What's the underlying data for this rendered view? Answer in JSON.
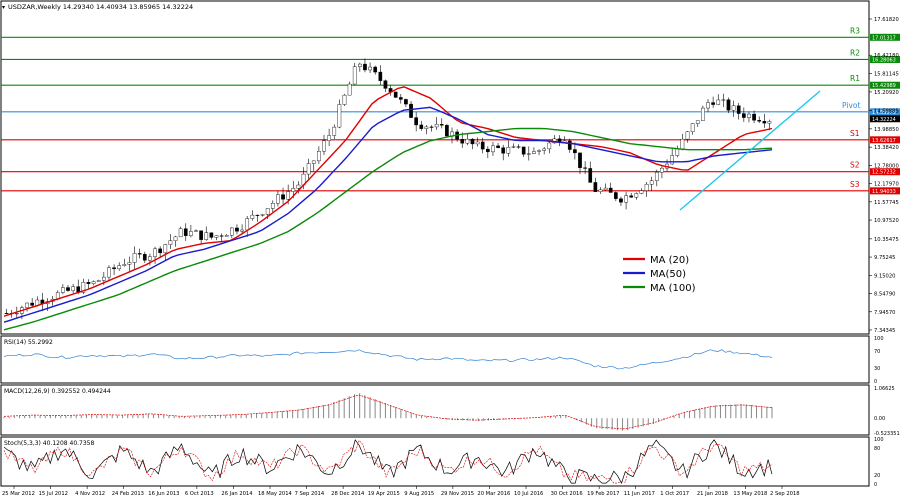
{
  "header": {
    "symbol_line": "USDZAR,Weekly  14.29340 14.40934 13.85965 14.32224"
  },
  "colors": {
    "up_candle": "#ffffff",
    "candle_stroke": "#000000",
    "ma20": "#e00000",
    "ma50": "#1a1acc",
    "ma100": "#0a8a0a",
    "resistance": "#0a8a0a",
    "pivot": "#2f8fe0",
    "support": "#e00000",
    "trend": "#1ec8f0",
    "panel_border": "#000000",
    "grid": "#dcdcdc"
  },
  "chart_data": [
    {
      "type": "line",
      "title": "USDZAR,Weekly",
      "ohlc_last": {
        "open": 14.2934,
        "high": 14.40934,
        "low": 13.85965,
        "close": 14.32224
      },
      "y_ticks": [
        "17.61820",
        "16.42180",
        "15.81145",
        "15.20920",
        "14.59885",
        "13.98850",
        "13.38420",
        "12.78000",
        "12.17970",
        "11.57745",
        "10.97520",
        "10.35475",
        "9.75245",
        "9.15020",
        "8.54790",
        "7.94570",
        "7.34345"
      ],
      "x_ticks": [
        "25 Mar 2012",
        "15 Jul 2012",
        "4 Nov 2012",
        "24 Feb 2013",
        "16 Jun 2013",
        "6 Oct 2013",
        "26 Jan 2014",
        "18 May 2014",
        "7 Sep 2014",
        "28 Dec 2014",
        "19 Apr 2015",
        "9 Aug 2015",
        "29 Nov 2015",
        "20 Mar 2016",
        "10 Jul 2016",
        "30 Oct 2016",
        "19 Feb 2017",
        "11 Jun 2017",
        "1 Oct 2017",
        "21 Jan 2018",
        "13 May 2018",
        "2 Sep 2018"
      ],
      "levels": [
        {
          "name": "R3",
          "value": 17.01317,
          "label": "17.01317"
        },
        {
          "name": "R2",
          "value": 16.28063,
          "label": "16.28063"
        },
        {
          "name": "R1",
          "value": 15.42989,
          "label": "15.42989"
        },
        {
          "name": "Pivot",
          "value": 14.55079,
          "label": "14.55079"
        },
        {
          "name": "S1",
          "value": 13.62617,
          "label": "13.62617"
        },
        {
          "name": "S2",
          "value": 12.57232,
          "label": "12.57232"
        },
        {
          "name": "S3",
          "value": 11.94033,
          "label": "11.94033"
        }
      ],
      "price_badge": "14.32224",
      "legend": [
        "MA (20)",
        "MA(50)",
        "MA (100)"
      ],
      "series": [
        {
          "name": "MA (20)",
          "values": [
            7.8,
            8.1,
            8.4,
            8.7,
            9.1,
            9.5,
            10.0,
            10.2,
            10.3,
            10.9,
            11.6,
            12.6,
            13.6,
            14.9,
            15.4,
            15.0,
            14.2,
            14.0,
            13.7,
            13.6,
            13.5,
            13.4,
            13.2,
            12.8,
            12.6,
            13.2,
            13.8,
            14.0
          ]
        },
        {
          "name": "MA(50)",
          "values": [
            7.6,
            7.9,
            8.2,
            8.5,
            8.9,
            9.3,
            9.8,
            10.0,
            10.3,
            10.6,
            11.2,
            12.0,
            13.0,
            14.1,
            14.6,
            14.7,
            14.3,
            13.8,
            13.6,
            13.6,
            13.5,
            13.3,
            13.1,
            12.9,
            12.9,
            13.1,
            13.2,
            13.3
          ]
        },
        {
          "name": "MA (100)",
          "values": [
            7.35,
            7.6,
            7.9,
            8.2,
            8.5,
            8.9,
            9.3,
            9.6,
            9.9,
            10.2,
            10.6,
            11.2,
            11.9,
            12.6,
            13.2,
            13.6,
            13.8,
            13.9,
            14.0,
            14.0,
            13.9,
            13.7,
            13.5,
            13.4,
            13.3,
            13.3,
            13.3,
            13.35
          ]
        },
        {
          "name": "Price",
          "values": [
            7.9,
            8.3,
            8.6,
            8.9,
            9.6,
            9.9,
            10.6,
            10.4,
            10.8,
            11.5,
            12.2,
            13.8,
            16.2,
            15.4,
            14.2,
            13.9,
            13.4,
            13.3,
            13.2,
            13.8,
            12.0,
            11.7,
            12.3,
            13.5,
            15.0,
            14.5,
            14.32
          ]
        }
      ]
    },
    {
      "type": "line",
      "title": "RSI(14) 55.2992",
      "y_ticks": [
        "100",
        "70",
        "30",
        "0"
      ],
      "values": [
        58,
        62,
        55,
        60,
        57,
        63,
        52,
        55,
        60,
        58,
        65,
        68,
        72,
        60,
        50,
        53,
        47,
        48,
        50,
        55,
        35,
        30,
        42,
        55,
        72,
        65,
        55.3
      ]
    },
    {
      "type": "bar",
      "title": "MACD(12,26,9) 0.392552 0.494244",
      "y_ticks": [
        "1.06625",
        "0.00",
        "-0.523351"
      ],
      "values": [
        0.05,
        0.1,
        0.08,
        0.12,
        0.1,
        0.15,
        0.05,
        0.08,
        0.12,
        0.2,
        0.3,
        0.5,
        0.9,
        0.5,
        0.1,
        -0.05,
        -0.1,
        -0.05,
        0.0,
        0.1,
        -0.35,
        -0.45,
        -0.2,
        0.2,
        0.45,
        0.5,
        0.39
      ]
    },
    {
      "type": "line",
      "title": "Stoch(5,3,3) 40.1208 40.7358",
      "y_ticks": [
        "100",
        "80",
        "20",
        "0"
      ],
      "values": [
        70,
        30,
        80,
        20,
        75,
        25,
        85,
        15,
        70,
        35,
        80,
        25,
        90,
        20,
        75,
        30,
        60,
        25,
        80,
        20,
        10,
        15,
        85,
        25,
        90,
        30,
        40.1
      ]
    }
  ]
}
